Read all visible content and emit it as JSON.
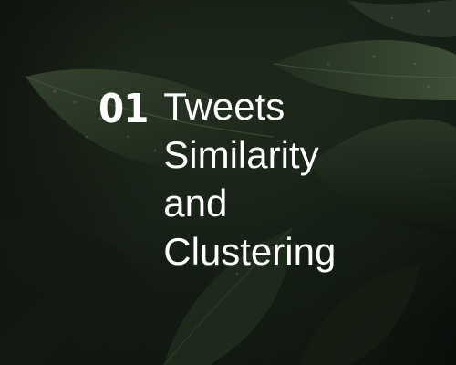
{
  "slide": {
    "number": "01",
    "title_lines": [
      "Tweets",
      "Similarity",
      "and",
      "Clustering"
    ],
    "text_color": "#ffffff",
    "background_colors": [
      "#0f140f",
      "#182118"
    ]
  },
  "background": {
    "icon": "leaves-photo-icon"
  }
}
